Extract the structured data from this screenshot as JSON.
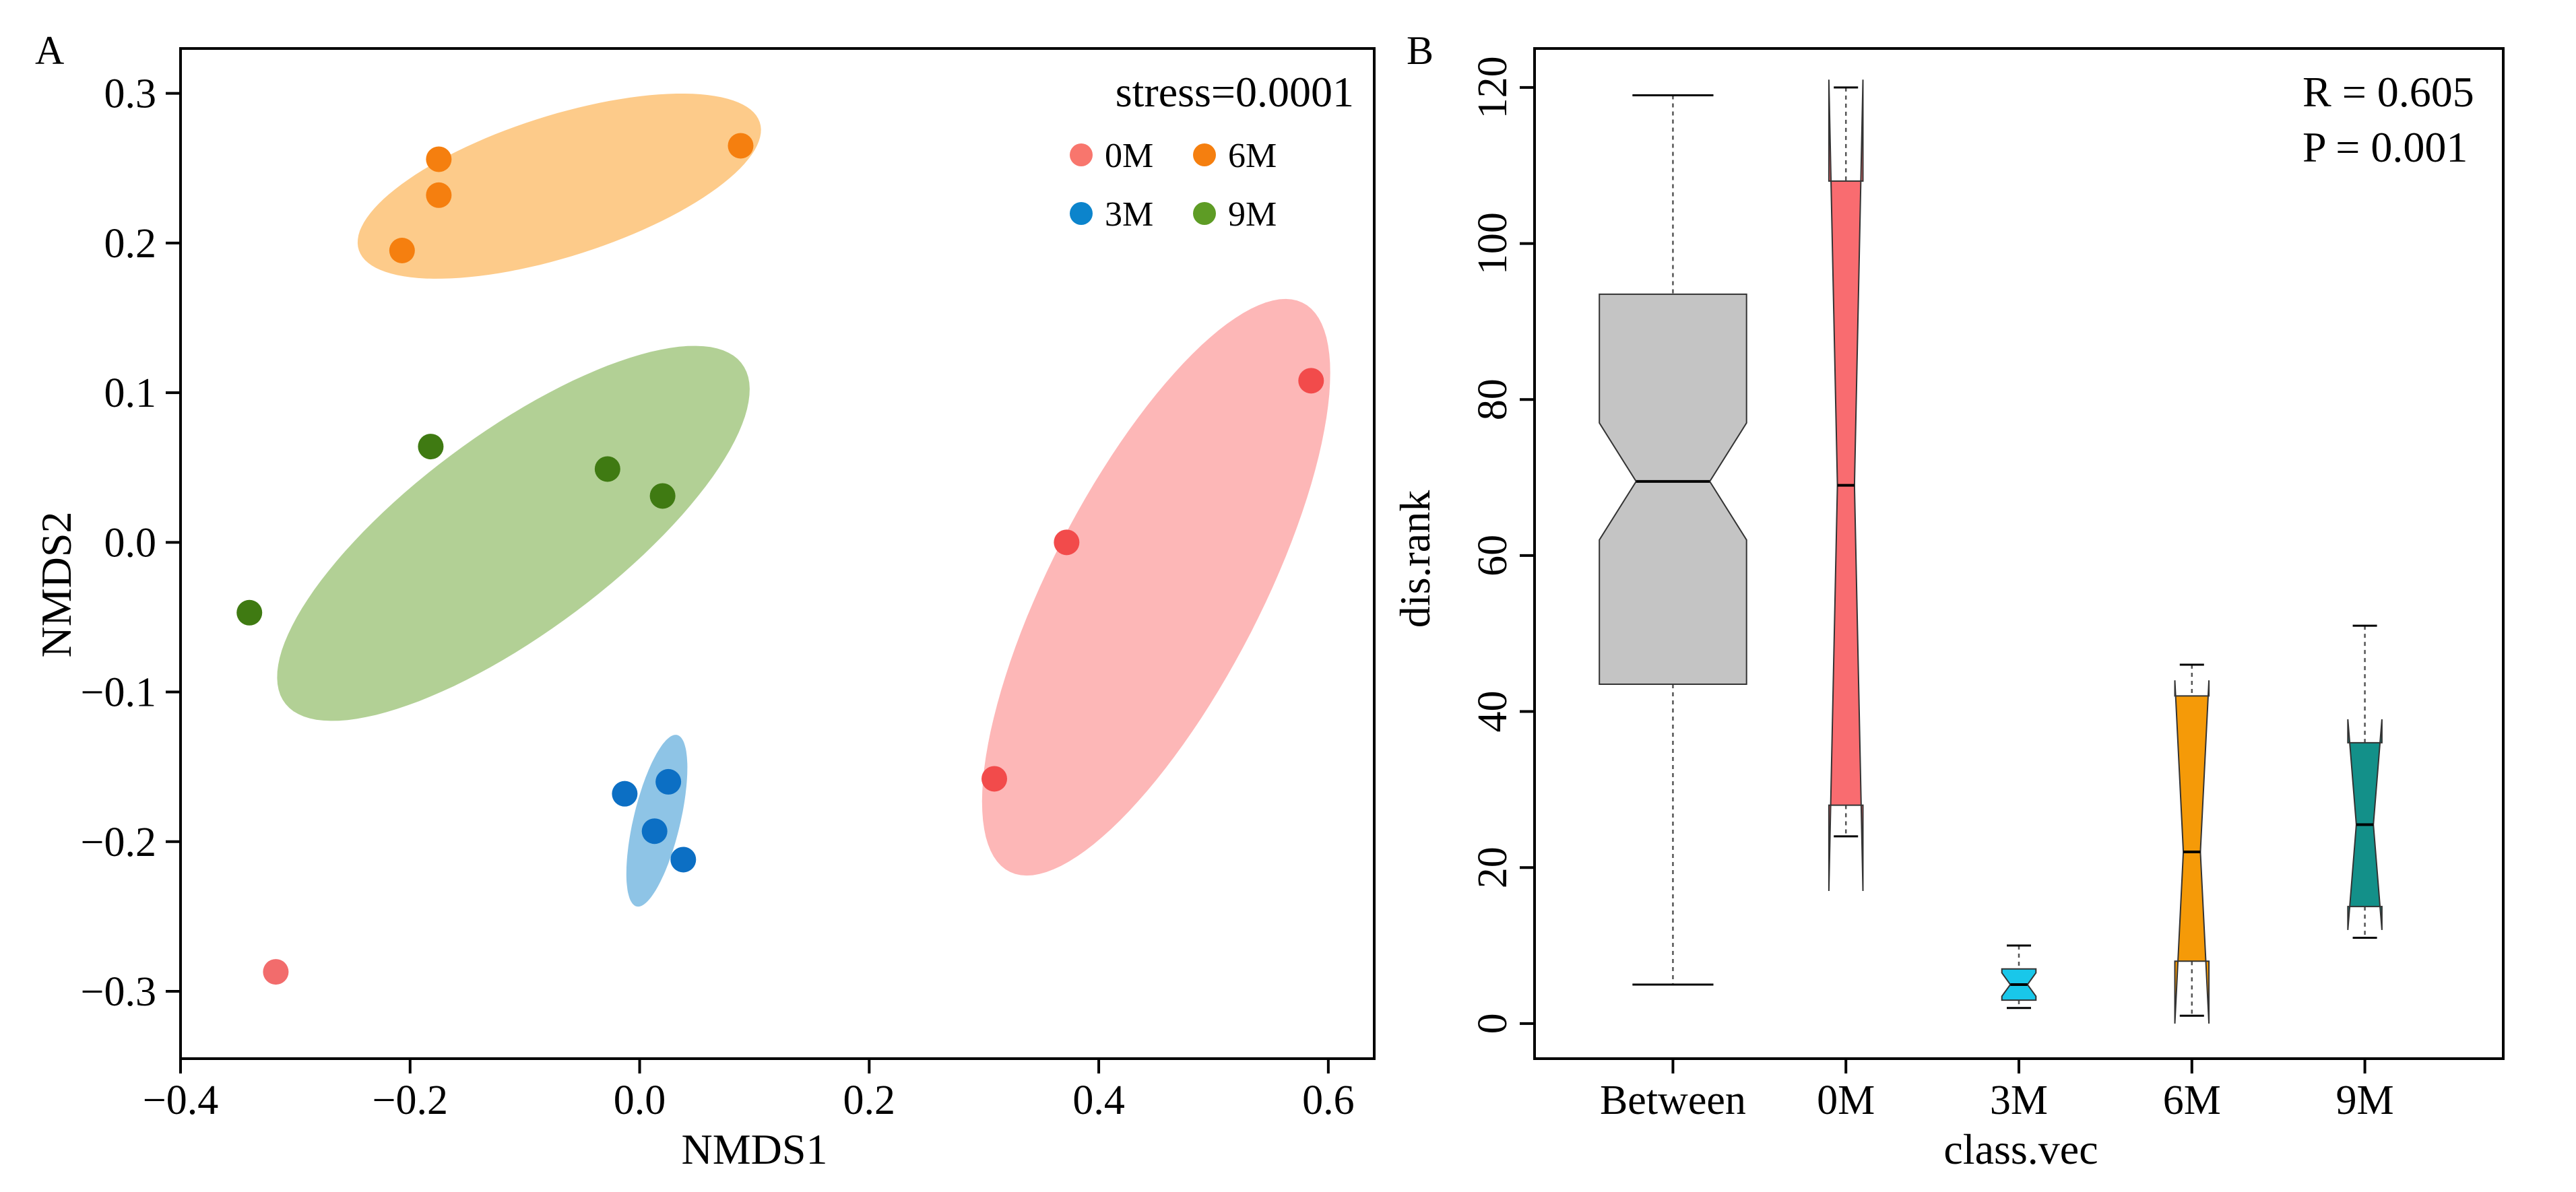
{
  "chart_data": [
    {
      "type": "scatter",
      "panel_label": "A",
      "xlabel": "NMDS1",
      "ylabel": "NMDS2",
      "xlim": [
        -0.4,
        0.64
      ],
      "ylim": [
        -0.345,
        0.33
      ],
      "x_ticks": [
        -0.4,
        -0.2,
        0.0,
        0.2,
        0.4,
        0.6
      ],
      "x_tick_labels": [
        "−0.4",
        "−0.2",
        "0.0",
        "0.2",
        "0.4",
        "0.6"
      ],
      "y_ticks": [
        0.3,
        0.2,
        0.1,
        0.0,
        -0.1,
        -0.2,
        -0.3
      ],
      "y_tick_labels": [
        "0.3",
        "0.2",
        "0.1",
        "0.0",
        "−0.1",
        "−0.2",
        "−0.3"
      ],
      "annotation": "stress=0.0001",
      "legend_position": "top-right",
      "legend": [
        {
          "label": "0M",
          "color": "#f8766d"
        },
        {
          "label": "6M",
          "color": "#f57f0f"
        },
        {
          "label": "3M",
          "color": "#0c84cc"
        },
        {
          "label": "9M",
          "color": "#5e9c25"
        }
      ],
      "series": [
        {
          "name": "0M",
          "point_color": "#f24b4b",
          "ellipse_color": "#fdb7b7",
          "points": [
            [
              0.585,
              0.108
            ],
            [
              0.372,
              0.0
            ],
            [
              0.309,
              -0.158
            ]
          ],
          "ellipse": {
            "center": [
              0.45,
              -0.03
            ],
            "semi_major": 0.23,
            "semi_minor": 0.085,
            "angle_deg": 54
          }
        },
        {
          "name": "0M (outlier)",
          "point_color": "#f26c6c",
          "points": [
            [
              -0.317,
              -0.287
            ]
          ]
        },
        {
          "name": "6M",
          "point_color": "#f57f0f",
          "ellipse_color": "#fdcb8a",
          "points": [
            [
              -0.175,
              0.256
            ],
            [
              -0.175,
              0.232
            ],
            [
              -0.207,
              0.195
            ],
            [
              0.088,
              0.265
            ]
          ],
          "ellipse": {
            "center": [
              -0.07,
              0.238
            ],
            "semi_major": 0.18,
            "semi_minor": 0.048,
            "angle_deg": 13
          }
        },
        {
          "name": "3M",
          "point_color": "#0c6fc4",
          "ellipse_color": "#8ec4e6",
          "points": [
            [
              -0.013,
              -0.168
            ],
            [
              0.025,
              -0.16
            ],
            [
              0.013,
              -0.193
            ],
            [
              0.038,
              -0.212
            ]
          ],
          "ellipse": {
            "center": [
              0.015,
              -0.186
            ],
            "semi_major": 0.06,
            "semi_minor": 0.02,
            "angle_deg": 72
          }
        },
        {
          "name": "9M",
          "point_color": "#3f7a12",
          "ellipse_color": "#b2d095",
          "points": [
            [
              -0.182,
              0.064
            ],
            [
              -0.028,
              0.049
            ],
            [
              0.02,
              0.031
            ],
            [
              -0.34,
              -0.047
            ]
          ],
          "ellipse": {
            "center": [
              -0.11,
              0.006
            ],
            "semi_major": 0.23,
            "semi_minor": 0.072,
            "angle_deg": 28
          }
        }
      ]
    },
    {
      "type": "boxplot",
      "panel_label": "B",
      "xlabel": "class.vec",
      "ylabel": "dis.rank",
      "ylim": [
        -4.5,
        125
      ],
      "y_ticks": [
        0,
        20,
        40,
        60,
        80,
        100,
        120
      ],
      "y_tick_labels": [
        "0",
        "20",
        "40",
        "60",
        "80",
        "100",
        "120"
      ],
      "annotation_r": "R = 0.605",
      "annotation_p": "P = 0.001",
      "categories": [
        "Between",
        "0M",
        "3M",
        "6M",
        "9M"
      ],
      "boxes": [
        {
          "name": "Between",
          "color": "#c4c4c4",
          "whisker_low": 5,
          "q1": 43.5,
          "notch_low": 62,
          "median": 69.5,
          "notch_high": 77,
          "q3": 93.5,
          "whisker_high": 119,
          "width_ratio": 0.95
        },
        {
          "name": "0M",
          "color": "#f96c70",
          "whisker_low": 24,
          "q1": 28,
          "notch_low": 17,
          "median": 69,
          "notch_high": 121,
          "q3": 108,
          "whisker_high": 120,
          "width_ratio": 0.22
        },
        {
          "name": "3M",
          "color": "#19c7ea",
          "whisker_low": 2,
          "q1": 3,
          "notch_low": 3.5,
          "median": 5,
          "notch_high": 6.5,
          "q3": 7,
          "whisker_high": 10,
          "width_ratio": 0.22
        },
        {
          "name": "6M",
          "color": "#f59a08",
          "whisker_low": 1,
          "q1": 8,
          "notch_low": 0,
          "median": 22,
          "notch_high": 44,
          "q3": 42,
          "whisker_high": 46,
          "width_ratio": 0.22
        },
        {
          "name": "9M",
          "color": "#139089",
          "whisker_low": 11,
          "q1": 15,
          "notch_low": 12,
          "median": 25.5,
          "notch_high": 39,
          "q3": 36,
          "whisker_high": 51,
          "width_ratio": 0.22
        }
      ]
    }
  ]
}
